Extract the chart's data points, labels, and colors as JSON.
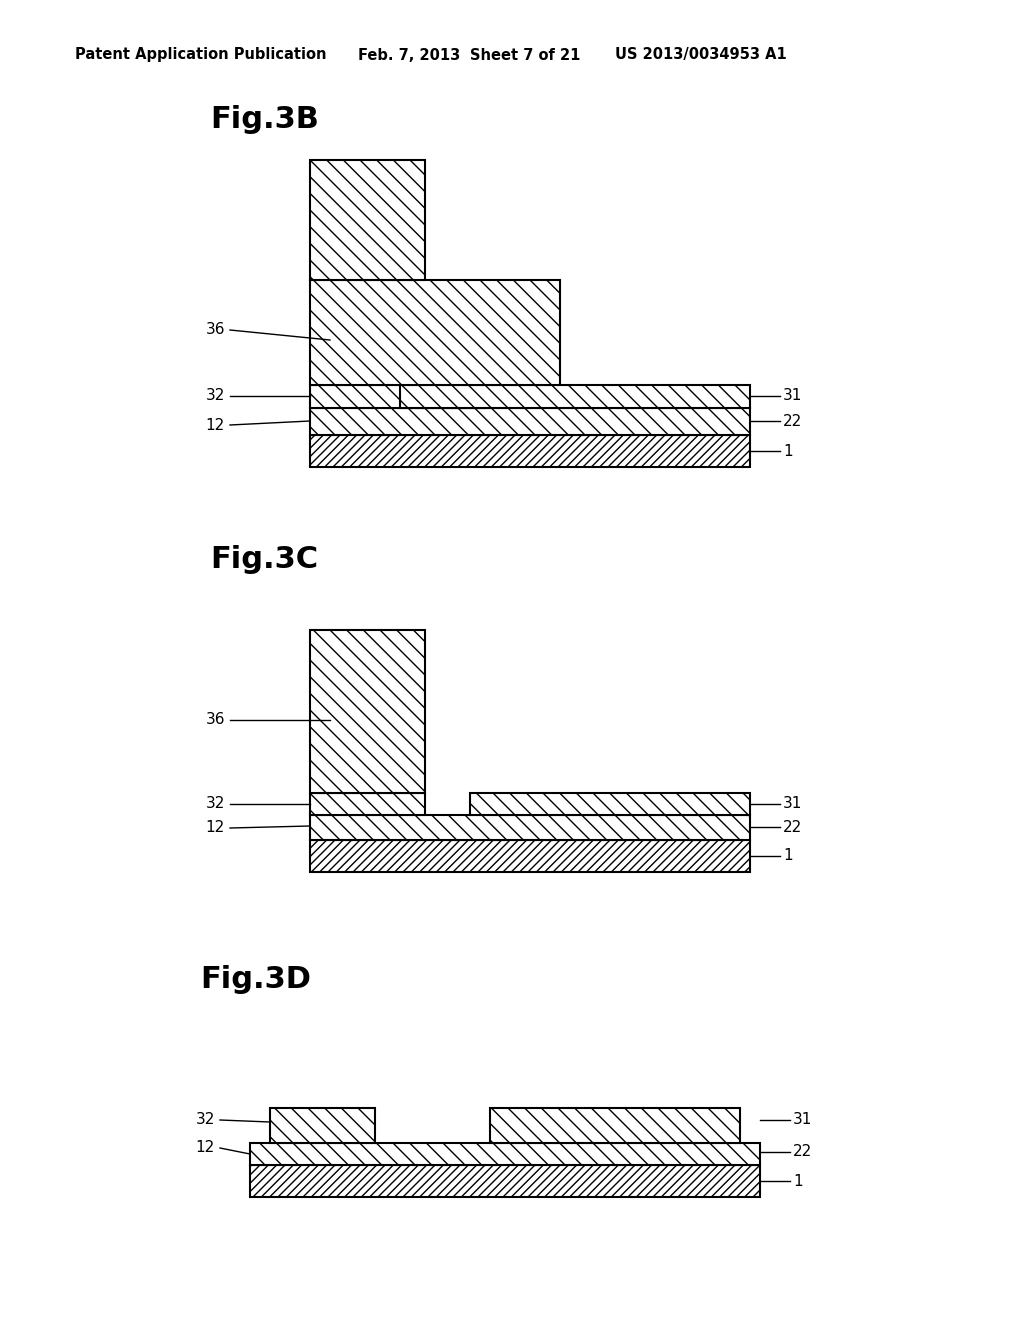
{
  "bg_color": "#ffffff",
  "header_left": "Patent Application Publication",
  "header_date": "Feb. 7, 2013",
  "header_sheet": "Sheet 7 of 21",
  "header_patent": "US 2013/0034953 A1"
}
